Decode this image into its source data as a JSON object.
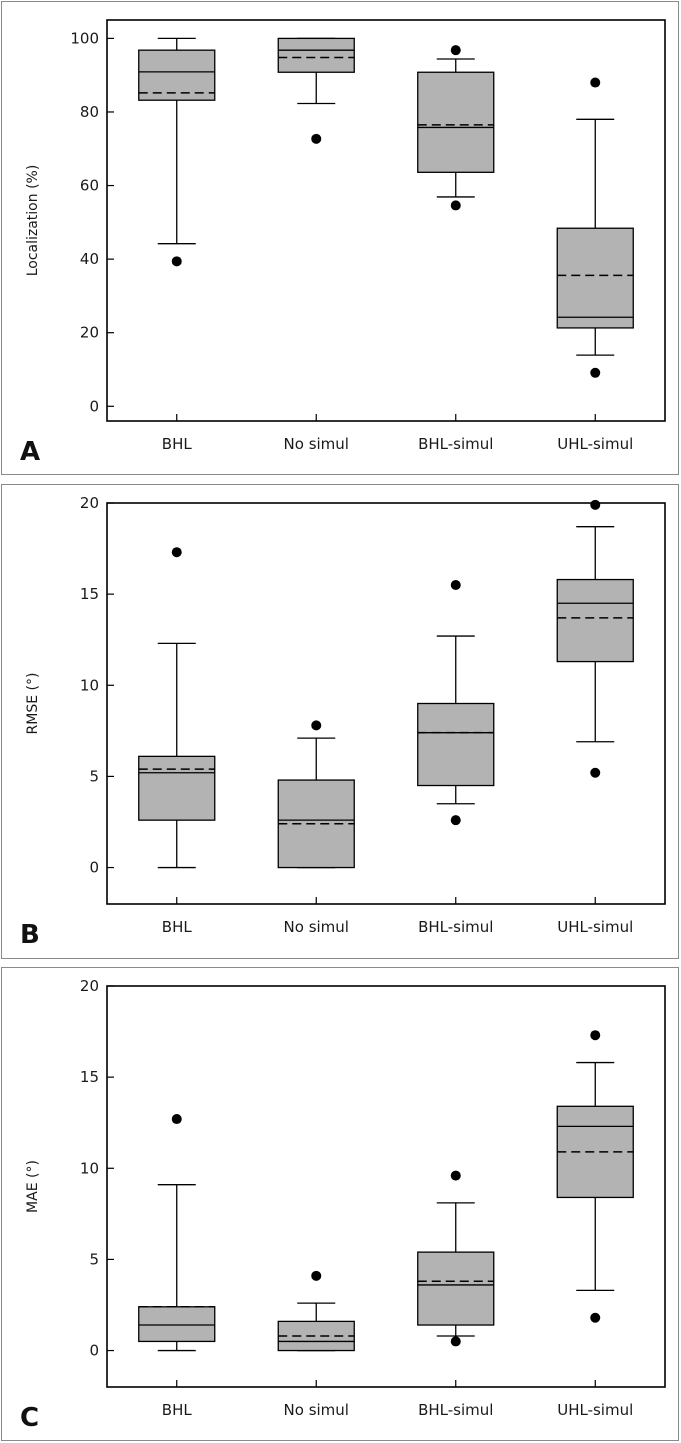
{
  "colors": {
    "box_fill": "#b3b3b3",
    "stroke": "#000000"
  },
  "chart_data": [
    {
      "type": "box",
      "panel_label": "A",
      "ylabel": "Localization (%)",
      "ylim": [
        -4,
        105
      ],
      "yticks": [
        0,
        20,
        40,
        60,
        80,
        100
      ],
      "categories": [
        "BHL",
        "No simul",
        "BHL-simul",
        "UHL-simul"
      ],
      "boxes": [
        {
          "whisker_low": 44.2,
          "q1": 83.2,
          "median": 90.9,
          "mean": 85.2,
          "q3": 96.8,
          "whisker_high": 100,
          "outliers": [
            39.4
          ]
        },
        {
          "whisker_low": 82.3,
          "q1": 90.8,
          "median": 96.8,
          "mean": 94.8,
          "q3": 100,
          "whisker_high": 100,
          "outliers": [
            72.7
          ]
        },
        {
          "whisker_low": 56.9,
          "q1": 63.6,
          "median": 75.8,
          "mean": 76.5,
          "q3": 90.8,
          "whisker_high": 94.4,
          "outliers": [
            54.6,
            96.8
          ]
        },
        {
          "whisker_low": 13.9,
          "q1": 21.3,
          "median": 24.2,
          "mean": 35.6,
          "q3": 48.4,
          "whisker_high": 78.0,
          "outliers": [
            9.1,
            88.0
          ]
        }
      ]
    },
    {
      "type": "box",
      "panel_label": "B",
      "ylabel": "RMSE (°)",
      "ylim": [
        -2,
        20
      ],
      "yticks": [
        0,
        5,
        10,
        15,
        20
      ],
      "categories": [
        "BHL",
        "No simul",
        "BHL-simul",
        "UHL-simul"
      ],
      "boxes": [
        {
          "whisker_low": 0.0,
          "q1": 2.6,
          "median": 5.2,
          "mean": 5.4,
          "q3": 6.1,
          "whisker_high": 12.3,
          "outliers": [
            17.3
          ]
        },
        {
          "whisker_low": 0.0,
          "q1": 0.0,
          "median": 2.6,
          "mean": 2.4,
          "q3": 4.8,
          "whisker_high": 7.1,
          "outliers": [
            7.8
          ]
        },
        {
          "whisker_low": 3.5,
          "q1": 4.5,
          "median": 7.4,
          "mean": 7.4,
          "q3": 9.0,
          "whisker_high": 12.7,
          "outliers": [
            2.6,
            15.5
          ]
        },
        {
          "whisker_low": 6.9,
          "q1": 11.3,
          "median": 14.5,
          "mean": 13.7,
          "q3": 15.8,
          "whisker_high": 18.7,
          "outliers": [
            5.2,
            19.9
          ]
        }
      ]
    },
    {
      "type": "box",
      "panel_label": "C",
      "ylabel": "MAE (°)",
      "ylim": [
        -2,
        20
      ],
      "yticks": [
        0,
        5,
        10,
        15,
        20
      ],
      "categories": [
        "BHL",
        "No simul",
        "BHL-simul",
        "UHL-simul"
      ],
      "boxes": [
        {
          "whisker_low": 0.0,
          "q1": 0.5,
          "median": 1.4,
          "mean": 2.4,
          "q3": 2.4,
          "whisker_high": 9.1,
          "outliers": [
            12.7
          ]
        },
        {
          "whisker_low": 0.0,
          "q1": 0.0,
          "median": 0.5,
          "mean": 0.8,
          "q3": 1.6,
          "whisker_high": 2.6,
          "outliers": [
            4.1
          ]
        },
        {
          "whisker_low": 0.8,
          "q1": 1.4,
          "median": 3.6,
          "mean": 3.8,
          "q3": 5.4,
          "whisker_high": 8.1,
          "outliers": [
            0.5,
            9.6
          ]
        },
        {
          "whisker_low": 3.3,
          "q1": 8.4,
          "median": 12.3,
          "mean": 10.9,
          "q3": 13.4,
          "whisker_high": 15.8,
          "outliers": [
            1.8,
            17.3
          ]
        }
      ]
    }
  ]
}
